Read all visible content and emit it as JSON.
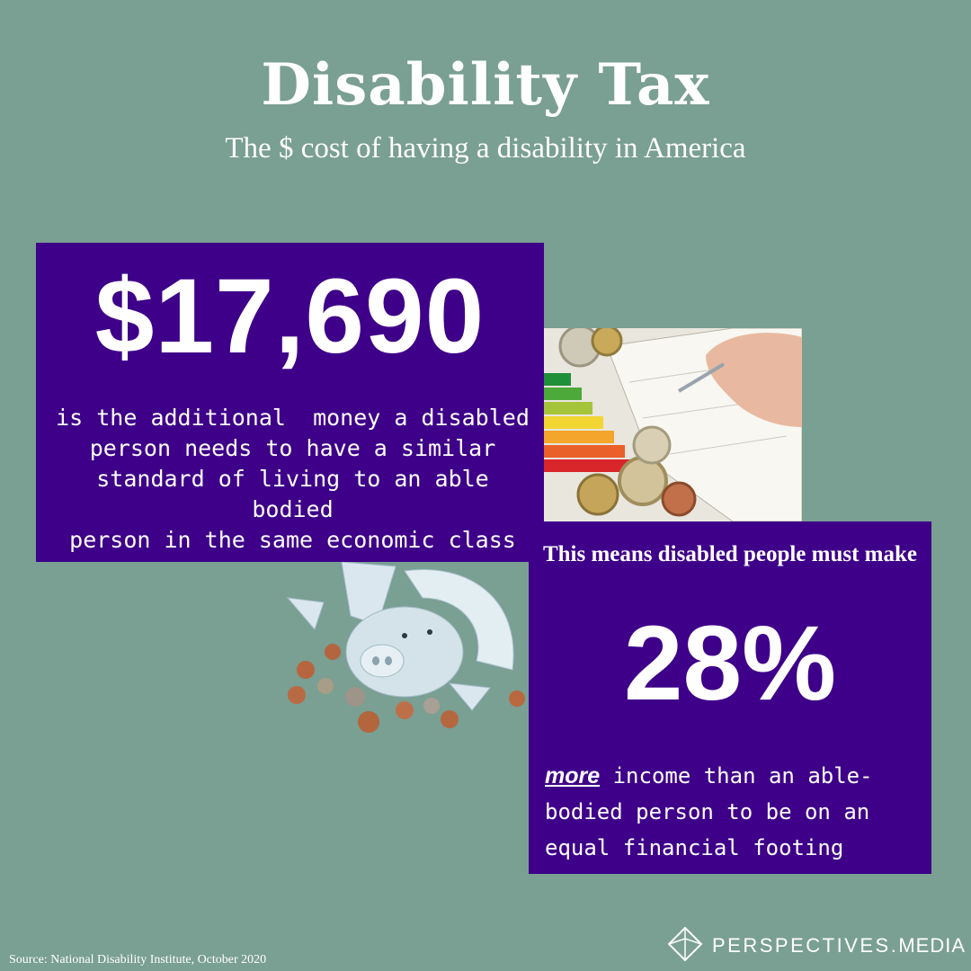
{
  "title": "Disability Tax",
  "subtitle": "The $ cost of having a disability in America",
  "card1": {
    "amount": "$17,690",
    "lines": [
      "is the additional  money a disabled",
      "person needs to have a similar",
      "standard of living to an able bodied",
      "person in the same economic class"
    ]
  },
  "card2": {
    "means": "This means disabled people must make",
    "percent": "28%",
    "emphasis": "more",
    "line1_rest": " income than an able-",
    "line2": "bodied person to be on an",
    "line3": "equal financial footing"
  },
  "source": "Source:  National Disability Institute, October 2020",
  "brand": {
    "prefix": "PERSPECTIVES.",
    "suffix": "MEDIA"
  },
  "colors": {
    "background": "#7a9f93",
    "card": "#3e0089",
    "text": "#ffffff"
  },
  "images": {
    "photo": "coins-and-energy-label-photo",
    "piggy": "broken-piggy-bank-with-coins"
  }
}
